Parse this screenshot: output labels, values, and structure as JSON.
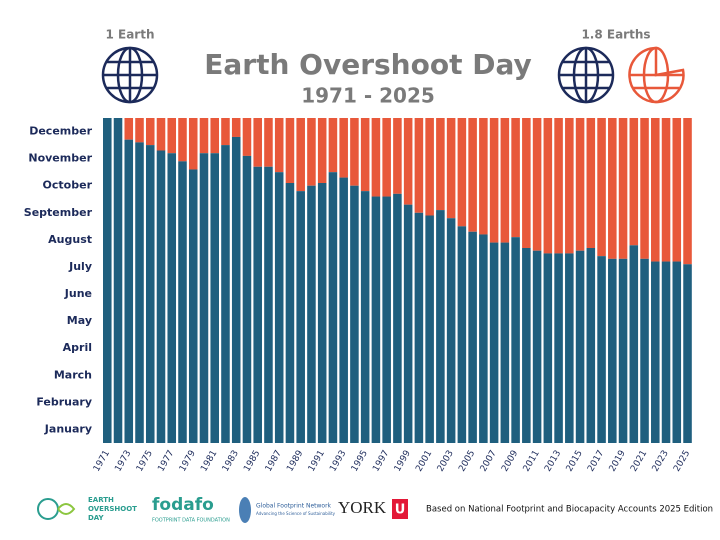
{
  "chart_data": {
    "type": "bar",
    "title": "Earth Overshoot Day",
    "subtitle": "1971 - 2025",
    "left_caption": "1 Earth",
    "right_caption": "1.8 Earths",
    "categories": [
      "1971",
      null,
      "1973",
      null,
      "1975",
      null,
      "1977",
      null,
      "1979",
      null,
      "1981",
      null,
      "1983",
      null,
      "1985",
      null,
      "1987",
      null,
      "1989",
      null,
      "1991",
      null,
      "1993",
      null,
      "1995",
      null,
      "1997",
      null,
      "1999",
      null,
      "2001",
      null,
      "2003",
      null,
      "2005",
      null,
      "2007",
      null,
      "2009",
      null,
      "2011",
      null,
      "2013",
      null,
      "2015",
      null,
      "2017",
      null,
      "2019",
      null,
      "2021",
      null,
      "2023",
      null,
      "2025"
    ],
    "values": [
      12.0,
      12.0,
      11.2,
      11.1,
      11.0,
      10.8,
      10.7,
      10.4,
      10.1,
      10.7,
      10.7,
      11.0,
      11.3,
      10.6,
      10.2,
      10.2,
      10.0,
      9.6,
      9.3,
      9.5,
      9.6,
      10.0,
      9.8,
      9.5,
      9.3,
      9.1,
      9.1,
      9.2,
      8.8,
      8.5,
      8.4,
      8.6,
      8.3,
      8.0,
      7.8,
      7.7,
      7.4,
      7.4,
      7.6,
      7.2,
      7.1,
      7.0,
      7.0,
      7.0,
      7.1,
      7.2,
      6.9,
      6.8,
      6.8,
      7.3,
      6.8,
      6.7,
      6.7,
      6.7,
      6.6
    ],
    "color": "#1f5f7e",
    "overshoot_color": "#e8583a",
    "ylim": [
      0,
      12
    ],
    "yticks": [
      {
        "value": 0.5,
        "label": "January"
      },
      {
        "value": 1.5,
        "label": "February"
      },
      {
        "value": 2.5,
        "label": "March"
      },
      {
        "value": 3.5,
        "label": "April"
      },
      {
        "value": 4.5,
        "label": "May"
      },
      {
        "value": 5.5,
        "label": "June"
      },
      {
        "value": 6.5,
        "label": "July"
      },
      {
        "value": 7.5,
        "label": "August"
      },
      {
        "value": 8.5,
        "label": "September"
      },
      {
        "value": 9.5,
        "label": "October"
      },
      {
        "value": 10.5,
        "label": "November"
      },
      {
        "value": 11.5,
        "label": "December"
      }
    ],
    "grid": false
  },
  "logos": {
    "eod": [
      "EARTH",
      "OVERSHOOT",
      "DAY"
    ],
    "fodafo": "fodafo",
    "fodafo_sub": "FOOTPRINT DATA FOUNDATION",
    "gfn": "Global Footprint Network",
    "gfn_sub": "Advancing the Science of Sustainability",
    "york": "YORK",
    "york_u": "U"
  },
  "source": "Based on National Footprint and Biocapacity Accounts 2025 Edition"
}
